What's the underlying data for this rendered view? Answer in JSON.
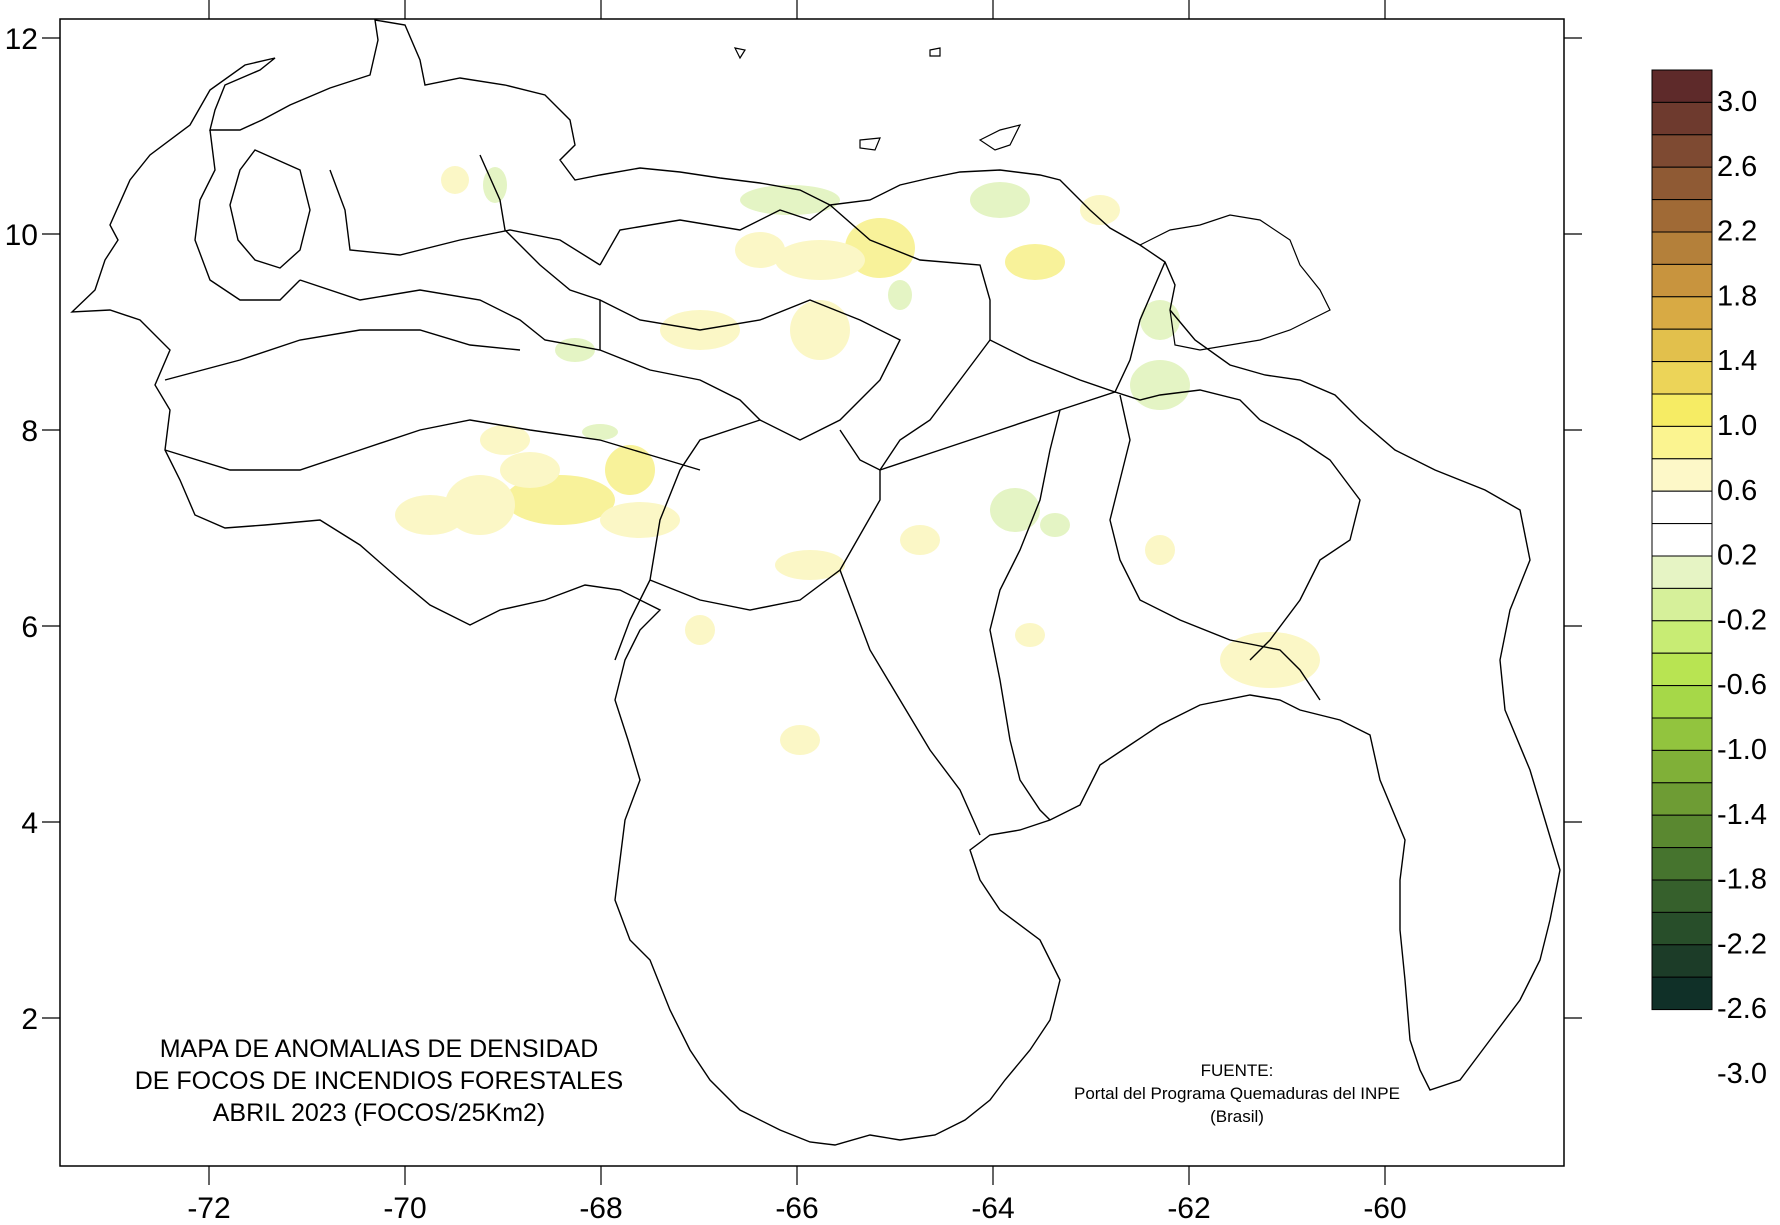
{
  "map": {
    "title_lines": [
      "MAPA DE ANOMALIAS DE DENSIDAD",
      "DE FOCOS DE INCENDIOS FORESTALES",
      "ABRIL 2023 (FOCOS/25Km2)"
    ],
    "source_lines": [
      "FUENTE:",
      "Portal del Programa Quemaduras del INPE",
      "(Brasil)"
    ],
    "x_axis": {
      "ticks": [
        "-72",
        "-70",
        "-68",
        "-66",
        "-64",
        "-62",
        "-60"
      ]
    },
    "y_axis": {
      "ticks": [
        "12",
        "10",
        "8",
        "6",
        "4",
        "2"
      ]
    }
  },
  "colorbar": {
    "labels": [
      "3.0",
      "2.6",
      "2.2",
      "1.8",
      "1.4",
      "1.0",
      "0.6",
      "0.2",
      "-0.2",
      "-0.6",
      "-1.0",
      "-1.4",
      "-1.8",
      "-2.2",
      "-2.6",
      "-3.0"
    ],
    "colors": [
      "#5e2a2a",
      "#6e3a2e",
      "#7e4a32",
      "#8f5a34",
      "#a06a36",
      "#b4803a",
      "#c8943e",
      "#d8aa44",
      "#e2c04c",
      "#ecd458",
      "#f6ec64",
      "#fbf490",
      "#fdf8c8",
      "#ffffff",
      "#ffffff",
      "#e6f4c4",
      "#d6f09a",
      "#c8ec74",
      "#b8e452",
      "#a6d848",
      "#92c43e",
      "#80b038",
      "#6e9c34",
      "#5a8830",
      "#46742e",
      "#36602c",
      "#284e2a",
      "#1c3c28",
      "#103028"
    ]
  },
  "anomaly_colors": {
    "pale_yellow": "#fbf7c6",
    "yellow": "#f8f29a",
    "light_green": "#e4f4c4",
    "green": "#d4eeaa"
  }
}
